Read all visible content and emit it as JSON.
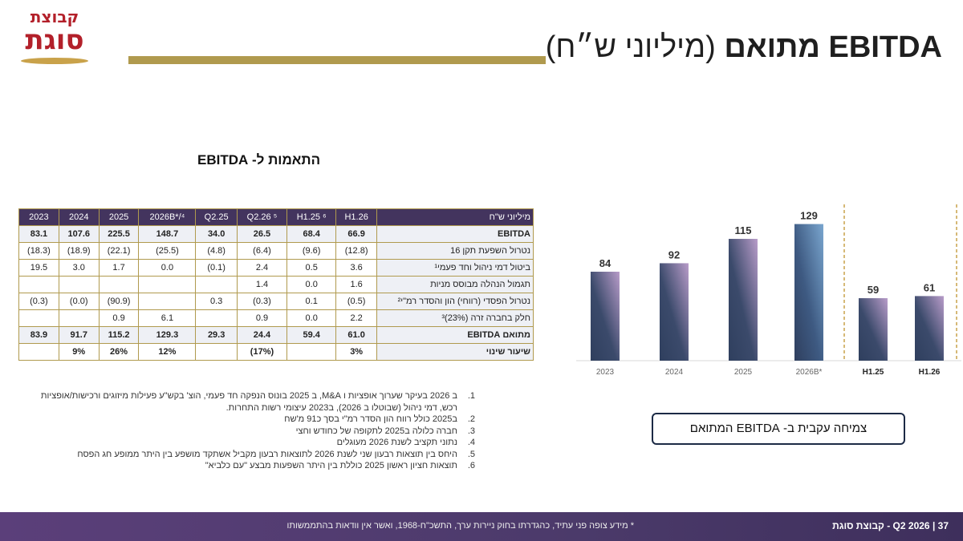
{
  "logo": {
    "line1": "קבוצת",
    "line2": "סוגת"
  },
  "header": {
    "title_main": "EBITDA מתואם",
    "title_sub": "(מיליוני ש״ח)"
  },
  "table": {
    "heading": "התאמות ל- EBITDA",
    "header_label": "מיליוני  ש\"ח",
    "columns": [
      "H1.26",
      "H1.25 ⁶",
      "Q2.26 ⁵",
      "Q2.25",
      "2026B*/⁴",
      "2025",
      "2024",
      "2023"
    ],
    "rows": [
      {
        "label": "EBITDA",
        "values": [
          "66.9",
          "68.4",
          "26.5",
          "34.0",
          "148.7",
          "225.5",
          "107.6",
          "83.1"
        ]
      },
      {
        "label": "נטרול השפעת תקן 16",
        "values": [
          "(12.8)",
          "(9.6)",
          "(6.4)",
          "(4.8)",
          "(25.5)",
          "(22.1)",
          "(18.9)",
          "(18.3)"
        ]
      },
      {
        "label": "ביטול דמי ניהול וחד פעמי¹",
        "values": [
          "3.6",
          "0.5",
          "2.4",
          "(0.1)",
          "0.0",
          "1.7",
          "3.0",
          "19.5"
        ]
      },
      {
        "label": "תגמול הנהלה מבוסס מניות",
        "values": [
          "1.6",
          "0.0",
          "1.4",
          "",
          "",
          "",
          "",
          ""
        ]
      },
      {
        "label": "נטרול הפסדי (רווחי) הון והסדר רמ\"י²",
        "values": [
          "(0.5)",
          "0.1",
          "(0.3)",
          "0.3",
          "",
          "(90.9)",
          "(0.0)",
          "(0.3)"
        ]
      },
      {
        "label": "חלק  בחברה זרה (23%)³",
        "values": [
          "2.2",
          "0.0",
          "0.9",
          "",
          "6.1",
          "0.9",
          "",
          ""
        ]
      },
      {
        "label": "מתואם EBITDA",
        "values": [
          "61.0",
          "59.4",
          "24.4",
          "29.3",
          "129.3",
          "115.2",
          "91.7",
          "83.9"
        ]
      },
      {
        "label": "שיעור שינוי",
        "values": [
          "3%",
          "",
          "(17%)",
          "",
          "12%",
          "26%",
          "9%",
          ""
        ]
      }
    ]
  },
  "notes": [
    {
      "num": "1.",
      "text": "ב 2026 בעיקר שערוך אופציות ו M&A, ב 2025 בונוס הנפקה חד פעמי, הוצ' בקש\"ע פעילות מיזוגים ורכישות/אופציות רכש, דמי ניהול (שבוטלו ב 2026), ב2023 עיצומי רשות התחרות."
    },
    {
      "num": "2.",
      "text": "ב2025 כולל רווח הון הסדר רמ\"י בסך כ91 מ'שח"
    },
    {
      "num": "3.",
      "text": "חברה כלולה ב2025 לתקופה של כחודש וחצי"
    },
    {
      "num": "4.",
      "text": "נתוני תקציב לשנת 2026 מעוגלים"
    },
    {
      "num": "5.",
      "text": "היחס בין תוצאות רבעון שני לשנת 2026 לתוצאות רבעון מקביל אשתקד מושפע בין היתר ממופע חג הפסח"
    },
    {
      "num": "6.",
      "text": "תוצאות חציון ראשון 2025 כוללת בין היתר השפעות מבצע \"עם כלביא\""
    }
  ],
  "chart_data": {
    "type": "bar",
    "categories": [
      "2023",
      "2024",
      "2025",
      "2026B*",
      "H1.25",
      "H1.26"
    ],
    "values": [
      84,
      92,
      115,
      129,
      59,
      61
    ],
    "title": "",
    "xlabel": "",
    "ylabel": "",
    "ylim": [
      0,
      140
    ],
    "grid": false,
    "bold_categories": [
      "H1.25",
      "H1.26"
    ],
    "colors": {
      "bar_dark": "#2f3f5e",
      "bar_light": "#b89cc9",
      "budget_light": "#7aa6cf",
      "divider": "#c9a24a"
    }
  },
  "callout": {
    "text": "צמיחה עקבית ב- EBITDA המתואם"
  },
  "footer": {
    "disclaimer": "* מידע צופה פני עתיד, כהגדרתו בחוק ניירות ערך, התשכ\"ח-1968, ואשר אין וודאות בהתממשותו",
    "company": "Q2 2026 - קבוצת סוגת",
    "separator": "|",
    "page": "37"
  }
}
